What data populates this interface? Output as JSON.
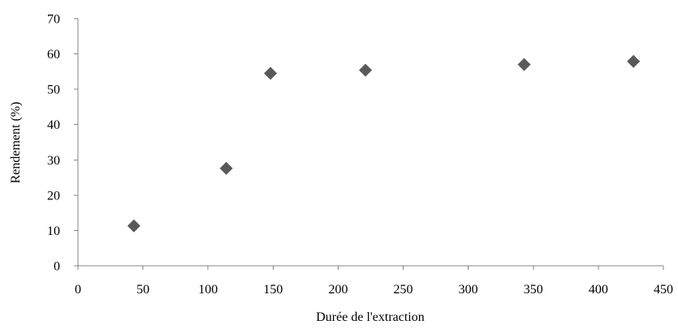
{
  "chart_data": {
    "type": "scatter",
    "title": "",
    "xlabel": "Durée de l'extraction",
    "ylabel": "Rendement (%)",
    "xlim": [
      0,
      450
    ],
    "ylim": [
      0,
      70
    ],
    "x_ticks": [
      "0",
      "50",
      "100",
      "150",
      "200",
      "250",
      "300",
      "350",
      "400",
      "450"
    ],
    "y_ticks": [
      "0",
      "10",
      "20",
      "30",
      "40",
      "50",
      "60",
      "70"
    ],
    "grid": false,
    "legend": "none",
    "marker": "diamond",
    "marker_color": "#595959",
    "series": [
      {
        "points": [
          {
            "x": 43,
            "y": 11.3
          },
          {
            "x": 114,
            "y": 27.6
          },
          {
            "x": 148,
            "y": 54.5
          },
          {
            "x": 221,
            "y": 55.4
          },
          {
            "x": 343,
            "y": 57.0
          },
          {
            "x": 427,
            "y": 57.9
          }
        ]
      }
    ]
  }
}
